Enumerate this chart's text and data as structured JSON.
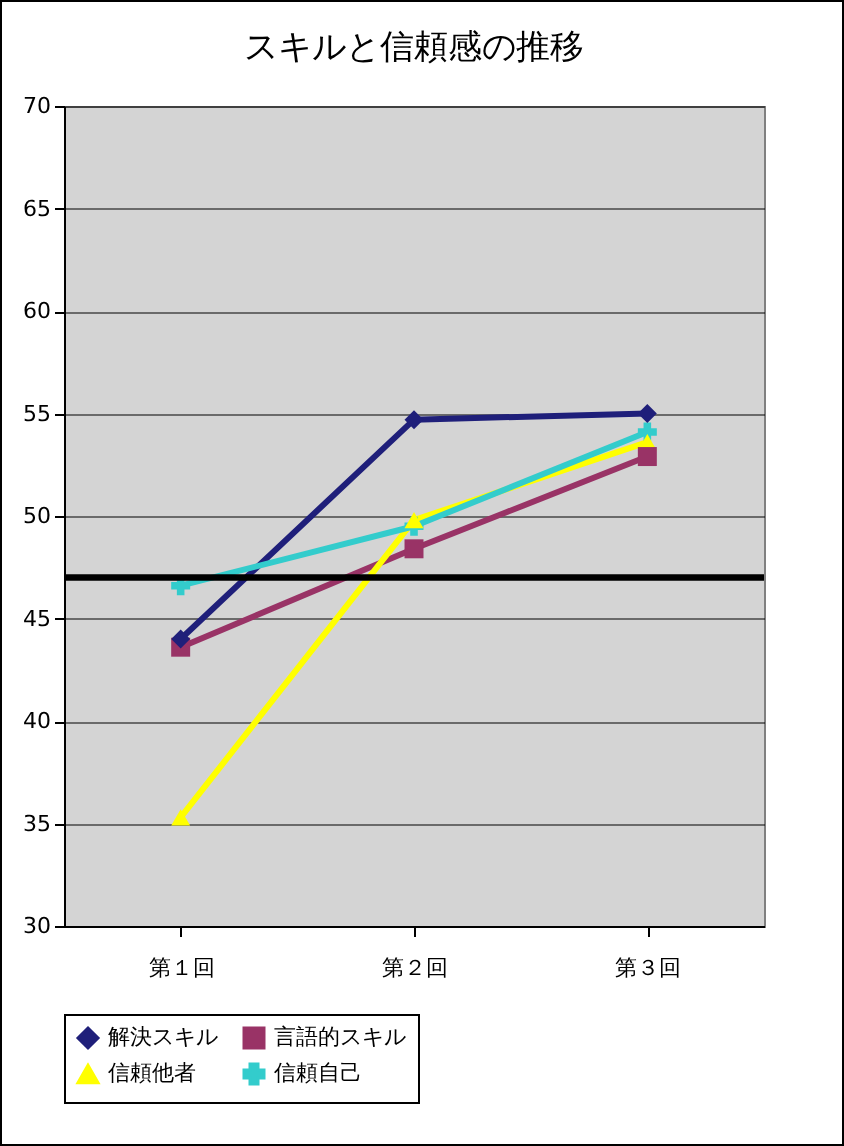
{
  "chart_data": {
    "type": "line",
    "title": "スキルと信頼感の推移",
    "categories": [
      "第１回",
      "第２回",
      "第３回"
    ],
    "series": [
      {
        "name": "解決スキル",
        "color": "#1f1f7a",
        "marker": "diamond",
        "values": [
          44.0,
          54.7,
          55.0
        ]
      },
      {
        "name": "言語的スキル",
        "color": "#993366",
        "marker": "square",
        "values": [
          43.6,
          48.4,
          52.9
        ]
      },
      {
        "name": "信頼他者",
        "color": "#ffff00",
        "marker": "triangle",
        "values": [
          35.3,
          49.8,
          53.6
        ]
      },
      {
        "name": "信頼自己",
        "color": "#33cccc",
        "marker": "cross",
        "values": [
          46.6,
          49.5,
          54.1
        ]
      }
    ],
    "ylim": [
      30,
      70
    ],
    "yticks": [
      30,
      35,
      40,
      45,
      50,
      55,
      60,
      65,
      70
    ],
    "grid": "y",
    "legend": "bottom",
    "ref_lines": [
      {
        "axis": "y",
        "value": 47,
        "color": "#000000"
      }
    ]
  }
}
